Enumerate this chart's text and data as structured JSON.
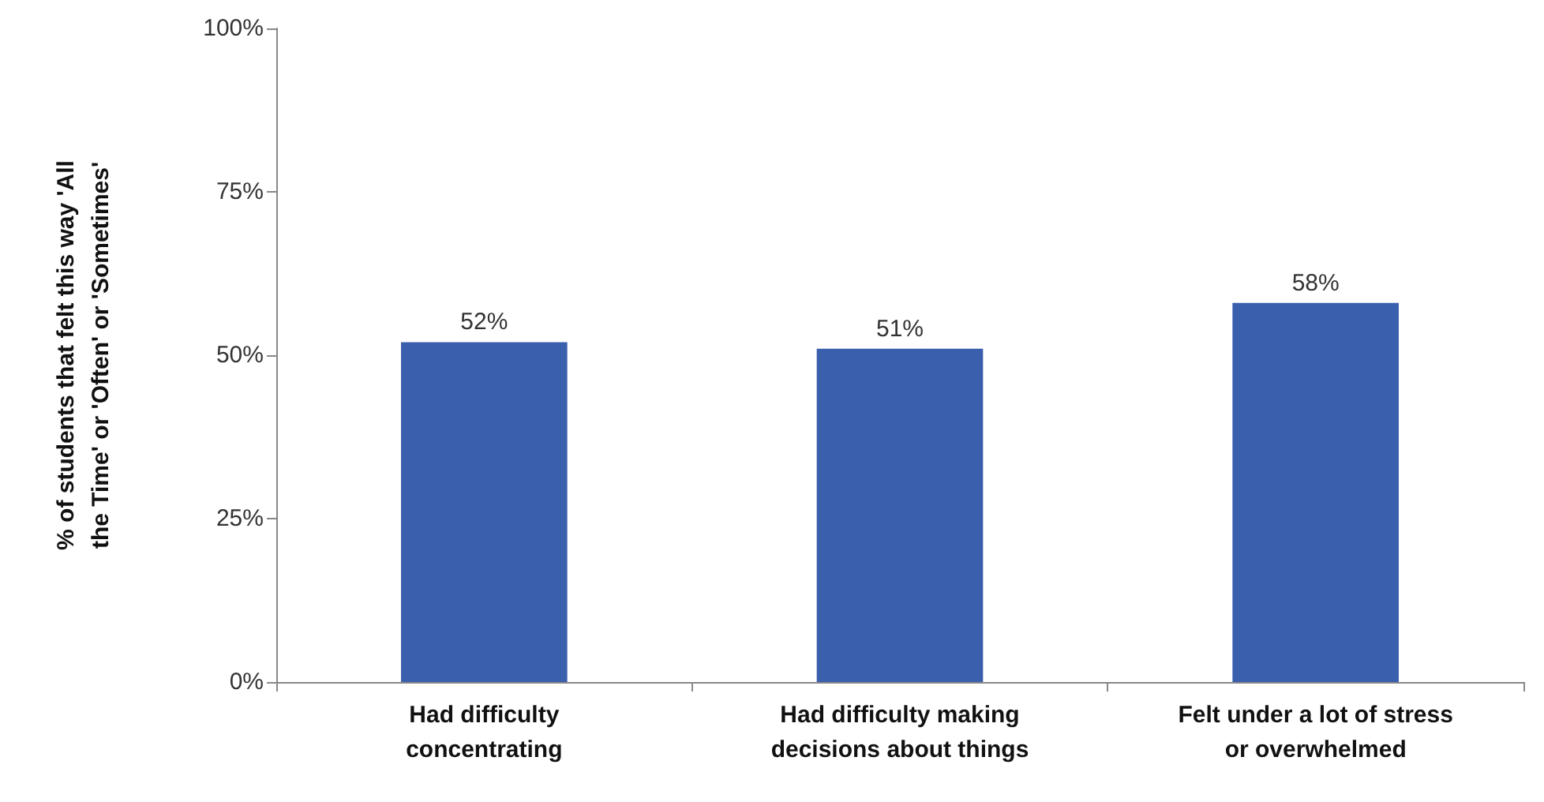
{
  "chart_data": {
    "type": "bar",
    "ylabel": "% of students that felt this way 'All the Time' or 'Often' or 'Sometimes'",
    "categories": [
      "Had difficulty concentrating",
      "Had difficulty making decisions about things",
      "Felt under a lot of stress or overwhelmed"
    ],
    "values": [
      52,
      51,
      58
    ],
    "color": "#3a5fad",
    "data_labels": true,
    "value_labels": [
      "52%",
      "51%",
      "58%"
    ],
    "ylim": [
      0,
      100
    ],
    "yticks": [
      {
        "value": 0,
        "label": "0%"
      },
      {
        "value": 25,
        "label": "25%"
      },
      {
        "value": 50,
        "label": "50%"
      },
      {
        "value": 75,
        "label": "75%"
      },
      {
        "value": 100,
        "label": "100%"
      }
    ],
    "grid": false
  }
}
